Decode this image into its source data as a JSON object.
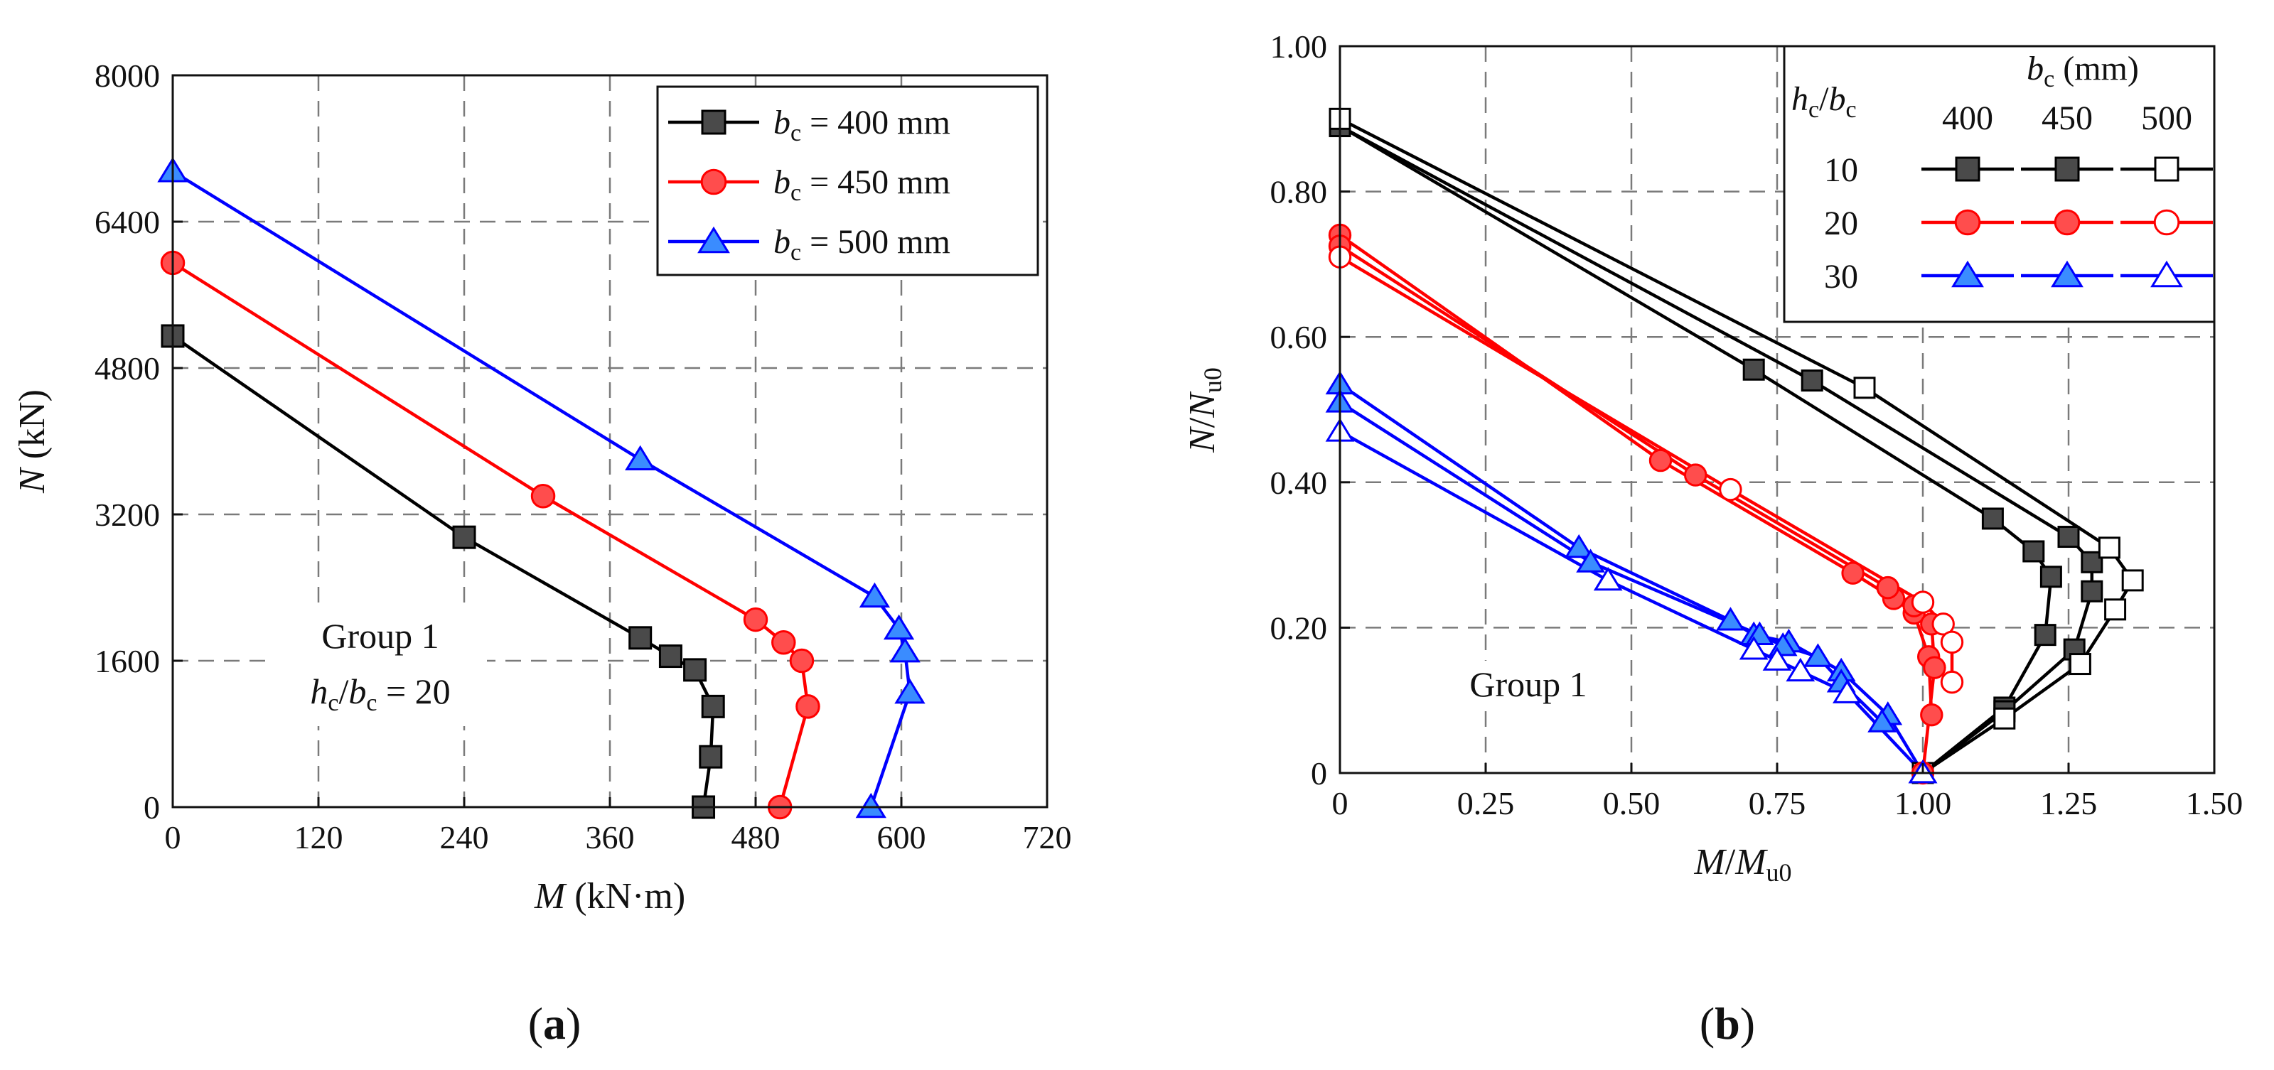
{
  "chart_data": [
    {
      "type": "line",
      "panel_label": "(a)",
      "xlabel": {
        "var": "M",
        "unit": " (kN·m)"
      },
      "ylabel": {
        "var": "N",
        "unit": " (kN)"
      },
      "xlim": [
        0,
        720
      ],
      "ylim": [
        0,
        8000
      ],
      "xticks": [
        0,
        120,
        240,
        360,
        480,
        600,
        720
      ],
      "yticks": [
        0,
        1600,
        3200,
        4800,
        6400,
        8000
      ],
      "xtick_labels": [
        "0",
        "120",
        "240",
        "360",
        "480",
        "600",
        "720"
      ],
      "ytick_labels": [
        "0",
        "1600",
        "3200",
        "4800",
        "6400",
        "8000"
      ],
      "grid": true,
      "legend_position": "top-right",
      "annotation": {
        "line1": "Group 1",
        "line2_var1": "h",
        "line2_sub1": "c",
        "line2_slash": "/",
        "line2_var2": "b",
        "line2_sub2": "c",
        "line2_value": " = 20"
      },
      "series": [
        {
          "name": "bc = 400 mm",
          "label_var": "b",
          "label_sub": "c",
          "label_value": " = 400 mm",
          "color": "#000000",
          "marker": "square",
          "fill": "#4a4a4a",
          "x": [
            0,
            240,
            385,
            410,
            430,
            445,
            443,
            437
          ],
          "y": [
            5150,
            2950,
            1850,
            1650,
            1500,
            1100,
            550,
            0
          ]
        },
        {
          "name": "bc = 450 mm",
          "label_var": "b",
          "label_sub": "c",
          "label_value": " = 450 mm",
          "color": "#ff0000",
          "marker": "circle",
          "fill": "#ff4d4d",
          "x": [
            0,
            305,
            480,
            503,
            518,
            523,
            500
          ],
          "y": [
            5950,
            3400,
            2050,
            1800,
            1600,
            1100,
            0
          ]
        },
        {
          "name": "bc = 500 mm",
          "label_var": "b",
          "label_sub": "c",
          "label_value": " = 500 mm",
          "color": "#0000ff",
          "marker": "triangle",
          "fill": "#3a8cff",
          "x": [
            0,
            385,
            578,
            598,
            603,
            607,
            575
          ],
          "y": [
            6950,
            3800,
            2300,
            1950,
            1700,
            1250,
            0
          ]
        }
      ]
    },
    {
      "type": "line",
      "panel_label": "(b)",
      "xlabel": {
        "var1": "M",
        "slash": "/",
        "var2": "M",
        "sub": "u0"
      },
      "ylabel": {
        "var1": "N",
        "slash": "/",
        "var2": "N",
        "sub": "u0"
      },
      "xlim": [
        0,
        1.5
      ],
      "ylim": [
        0,
        1.0
      ],
      "xticks": [
        0,
        0.25,
        0.5,
        0.75,
        1.0,
        1.25,
        1.5
      ],
      "yticks": [
        0,
        0.2,
        0.4,
        0.6,
        0.8,
        1.0
      ],
      "xtick_labels": [
        "0",
        "0.25",
        "0.50",
        "0.75",
        "1.00",
        "1.25",
        "1.50"
      ],
      "ytick_labels": [
        "0",
        "0.20",
        "0.40",
        "0.60",
        "0.80",
        "1.00"
      ],
      "grid": true,
      "legend_position": "top-right",
      "annotation": {
        "line1": "Group 1"
      },
      "legend": {
        "row_header_var1": "h",
        "row_header_sub1": "c",
        "row_header_slash": "/",
        "row_header_var2": "b",
        "row_header_sub2": "c",
        "col_header_var": "b",
        "col_header_sub": "c",
        "col_header_unit": " (mm)",
        "columns": [
          "400",
          "450",
          "500"
        ],
        "rows": [
          "10",
          "20",
          "30"
        ]
      },
      "series": [
        {
          "name": "hc/bc=10, bc=400",
          "color": "#000000",
          "marker": "square",
          "fill": "#4a4a4a",
          "x": [
            0,
            0.71,
            1.12,
            1.19,
            1.22,
            1.21,
            1.14,
            1.0
          ],
          "y": [
            0.89,
            0.555,
            0.35,
            0.305,
            0.27,
            0.19,
            0.09,
            0.0
          ]
        },
        {
          "name": "hc/bc=10, bc=450",
          "color": "#000000",
          "marker": "square",
          "fill": "#4a4a4a",
          "x": [
            0,
            0.81,
            1.25,
            1.29,
            1.29,
            1.26,
            1.14,
            1.0
          ],
          "y": [
            0.89,
            0.54,
            0.325,
            0.29,
            0.25,
            0.17,
            0.085,
            0.0
          ]
        },
        {
          "name": "hc/bc=10, bc=500",
          "color": "#000000",
          "marker": "square",
          "fill": "#ffffff",
          "x": [
            0,
            0.9,
            1.32,
            1.36,
            1.33,
            1.27,
            1.14,
            1.0
          ],
          "y": [
            0.9,
            0.53,
            0.31,
            0.265,
            0.225,
            0.15,
            0.075,
            0.0
          ]
        },
        {
          "name": "hc/bc=20, bc=400",
          "color": "#ff0000",
          "marker": "circle",
          "fill": "#ff4d4d",
          "x": [
            0,
            0.55,
            0.88,
            0.95,
            0.985,
            1.01,
            1.015
          ],
          "y": [
            0.74,
            0.43,
            0.275,
            0.24,
            0.22,
            0.16,
            0.08
          ]
        },
        {
          "name": "hc/bc=20, bc=450",
          "color": "#ff0000",
          "marker": "circle",
          "fill": "#ff4d4d",
          "x": [
            0,
            0.61,
            0.94,
            0.985,
            1.015,
            1.02,
            1.0
          ],
          "y": [
            0.725,
            0.41,
            0.255,
            0.23,
            0.205,
            0.145,
            0.0
          ]
        },
        {
          "name": "hc/bc=20, bc=500",
          "color": "#ff0000",
          "marker": "circle",
          "fill": "#ffffff",
          "x": [
            0,
            0.67,
            1.0,
            1.035,
            1.05,
            1.05
          ],
          "y": [
            0.71,
            0.39,
            0.235,
            0.205,
            0.18,
            0.125
          ]
        },
        {
          "name": "hc/bc=30, bc=400",
          "color": "#0000ff",
          "marker": "triangle",
          "fill": "#3a8cff",
          "x": [
            0,
            0.41,
            0.67,
            0.71,
            0.77,
            0.86,
            0.94,
            1.0
          ],
          "y": [
            0.535,
            0.31,
            0.21,
            0.19,
            0.18,
            0.14,
            0.08,
            0.0
          ]
        },
        {
          "name": "hc/bc=30, bc=450",
          "color": "#0000ff",
          "marker": "triangle",
          "fill": "#3a8cff",
          "x": [
            0,
            0.43,
            0.72,
            0.76,
            0.82,
            0.86,
            0.93
          ],
          "y": [
            0.51,
            0.29,
            0.19,
            0.175,
            0.16,
            0.125,
            0.07
          ]
        },
        {
          "name": "hc/bc=30, bc=500",
          "color": "#0000ff",
          "marker": "triangle",
          "fill": "#ffffff",
          "x": [
            0,
            0.46,
            0.71,
            0.75,
            0.79,
            0.87,
            1.0
          ],
          "y": [
            0.47,
            0.265,
            0.17,
            0.155,
            0.14,
            0.11,
            0.0
          ]
        }
      ]
    }
  ]
}
